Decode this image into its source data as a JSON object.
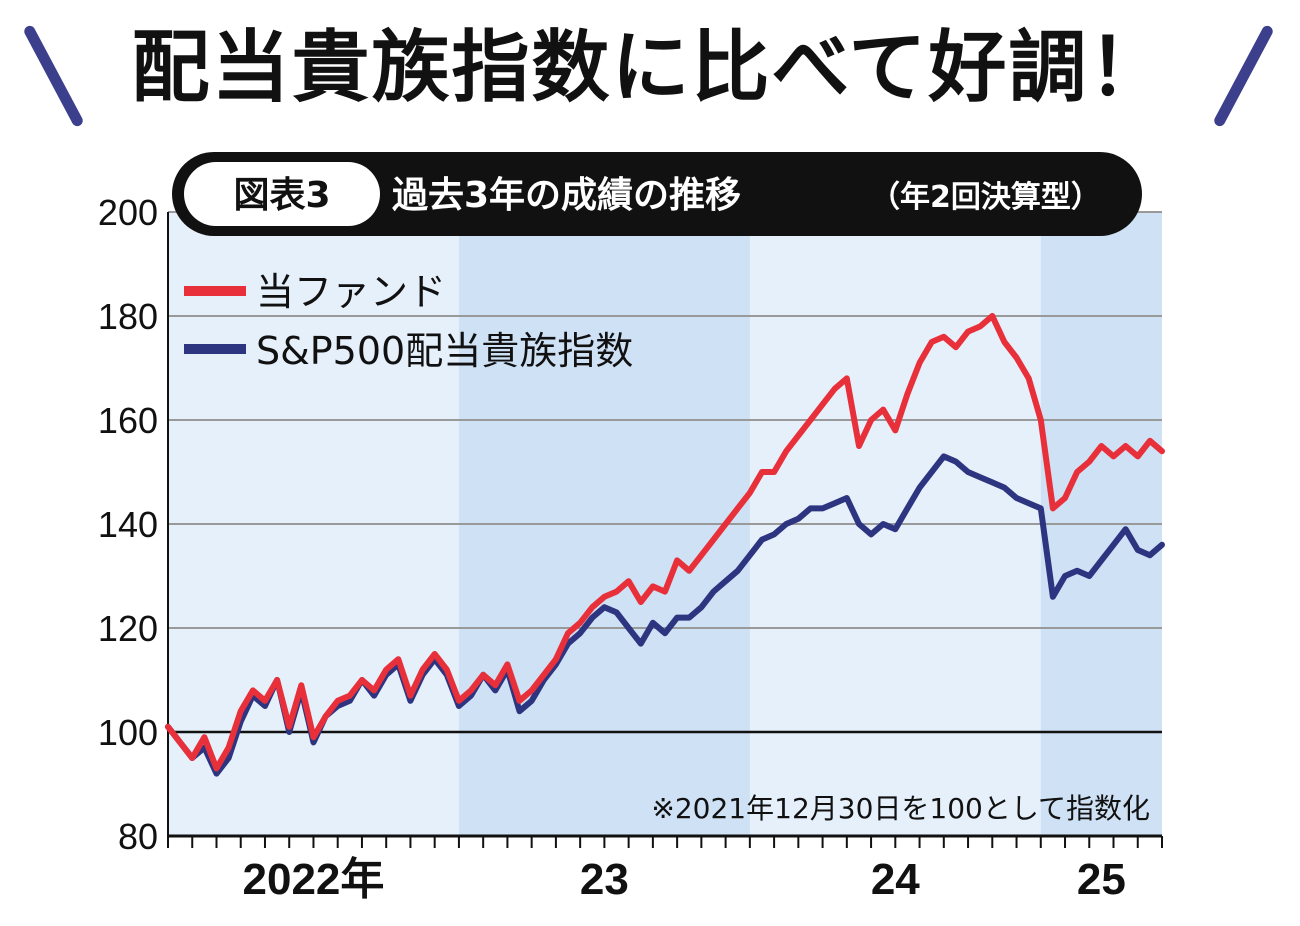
{
  "headline": "配当貴族指数に比べて好調！",
  "chart_data": {
    "type": "line",
    "badge": "図表3",
    "title": "過去3年の成績の推移",
    "subtitle": "（年2回決算型）",
    "note": "※2021年12月30日を100として指数化",
    "ylim": [
      80,
      200
    ],
    "yticks": [
      "80",
      "100",
      "120",
      "140",
      "160",
      "180",
      "200"
    ],
    "xlim": [
      0,
      41
    ],
    "xticks": [
      {
        "label": "2022年",
        "x": 6
      },
      {
        "label": "23",
        "x": 18
      },
      {
        "label": "24",
        "x": 30
      },
      {
        "label": "25",
        "x": 38.5
      }
    ],
    "x_month_ticks": [
      0,
      1,
      2,
      3,
      4,
      5,
      6,
      7,
      8,
      9,
      10,
      11,
      12,
      13,
      14,
      15,
      16,
      17,
      18,
      19,
      20,
      21,
      22,
      23,
      24,
      25,
      26,
      27,
      28,
      29,
      30,
      31,
      32,
      33,
      34,
      35,
      36,
      37,
      38,
      39,
      40,
      41
    ],
    "shaded_bands": [
      [
        12,
        24
      ],
      [
        36,
        41
      ]
    ],
    "grid": true,
    "legend_position": "top-left",
    "series": [
      {
        "name": "当ファンド",
        "color": "#e8303a",
        "x": [
          0,
          0.5,
          1,
          1.5,
          2,
          2.5,
          3,
          3.5,
          4,
          4.5,
          5,
          5.5,
          6,
          6.5,
          7,
          7.5,
          8,
          8.5,
          9,
          9.5,
          10,
          10.5,
          11,
          11.5,
          12,
          12.5,
          13,
          13.5,
          14,
          14.5,
          15,
          15.5,
          16,
          16.5,
          17,
          17.5,
          18,
          18.5,
          19,
          19.5,
          20,
          20.5,
          21,
          21.5,
          22,
          22.5,
          23,
          23.5,
          24,
          24.5,
          25,
          25.5,
          26,
          26.5,
          27,
          27.5,
          28,
          28.5,
          29,
          29.5,
          30,
          30.5,
          31,
          31.5,
          32,
          32.5,
          33,
          33.5,
          34,
          34.5,
          35,
          35.5,
          36,
          36.5,
          37,
          37.5,
          38,
          38.5,
          39,
          39.5,
          40,
          40.5,
          41
        ],
        "values": [
          101,
          98,
          95,
          99,
          93,
          97,
          104,
          108,
          106,
          110,
          101,
          109,
          99,
          103,
          106,
          107,
          110,
          108,
          112,
          114,
          107,
          112,
          115,
          112,
          106,
          108,
          111,
          109,
          113,
          106,
          108,
          111,
          114,
          119,
          121,
          124,
          126,
          127,
          129,
          125,
          128,
          127,
          133,
          131,
          134,
          137,
          140,
          143,
          146,
          150,
          150,
          154,
          157,
          160,
          163,
          166,
          168,
          155,
          160,
          162,
          158,
          165,
          171,
          175,
          176,
          174,
          177,
          178,
          180,
          175,
          172,
          168,
          160,
          143,
          145,
          150,
          152,
          155,
          153,
          155,
          153,
          156,
          154
        ]
      },
      {
        "name": "S&P500配当貴族指数",
        "color": "#2e3580",
        "x": [
          0,
          0.5,
          1,
          1.5,
          2,
          2.5,
          3,
          3.5,
          4,
          4.5,
          5,
          5.5,
          6,
          6.5,
          7,
          7.5,
          8,
          8.5,
          9,
          9.5,
          10,
          10.5,
          11,
          11.5,
          12,
          12.5,
          13,
          13.5,
          14,
          14.5,
          15,
          15.5,
          16,
          16.5,
          17,
          17.5,
          18,
          18.5,
          19,
          19.5,
          20,
          20.5,
          21,
          21.5,
          22,
          22.5,
          23,
          23.5,
          24,
          24.5,
          25,
          25.5,
          26,
          26.5,
          27,
          27.5,
          28,
          28.5,
          29,
          29.5,
          30,
          30.5,
          31,
          31.5,
          32,
          32.5,
          33,
          33.5,
          34,
          34.5,
          35,
          35.5,
          36,
          36.5,
          37,
          37.5,
          38,
          38.5,
          39,
          39.5,
          40,
          40.5,
          41
        ],
        "values": [
          101,
          98,
          95,
          97,
          92,
          95,
          102,
          107,
          105,
          110,
          100,
          108,
          98,
          103,
          105,
          106,
          110,
          107,
          111,
          113,
          106,
          111,
          114,
          111,
          105,
          107,
          111,
          108,
          112,
          104,
          106,
          110,
          113,
          117,
          119,
          122,
          124,
          123,
          120,
          117,
          121,
          119,
          122,
          122,
          124,
          127,
          129,
          131,
          134,
          137,
          138,
          140,
          141,
          143,
          143,
          144,
          145,
          140,
          138,
          140,
          139,
          143,
          147,
          150,
          153,
          152,
          150,
          149,
          148,
          147,
          145,
          144,
          143,
          126,
          130,
          131,
          130,
          133,
          136,
          139,
          135,
          134,
          136
        ]
      }
    ]
  }
}
